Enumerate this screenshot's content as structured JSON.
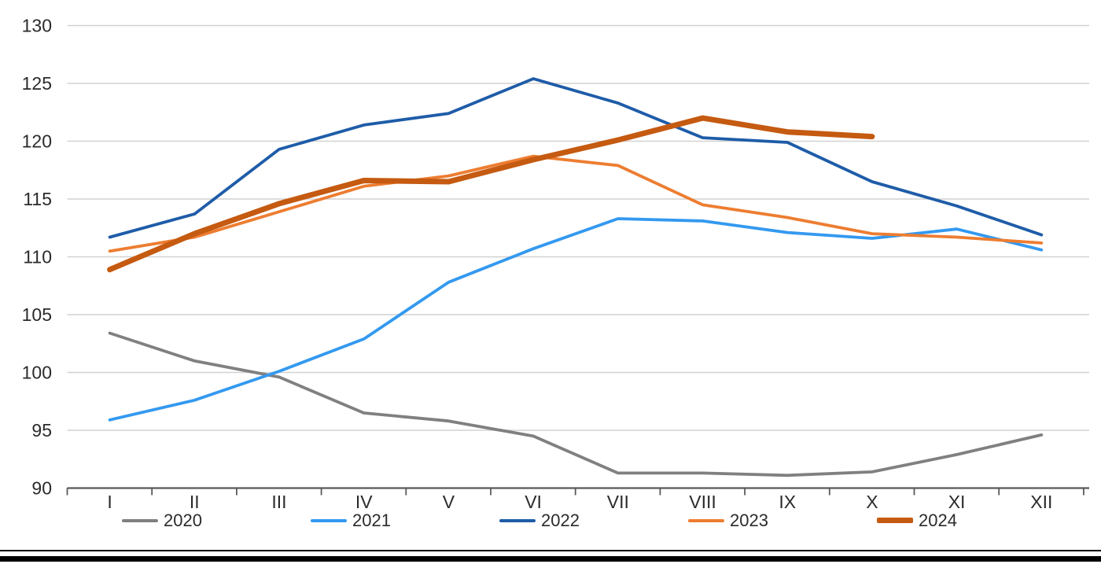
{
  "chart_data": {
    "type": "line",
    "title": "",
    "xlabel": "",
    "ylabel": "",
    "categories": [
      "I",
      "II",
      "III",
      "IV",
      "V",
      "VI",
      "VII",
      "VIII",
      "IX",
      "X",
      "XI",
      "XII"
    ],
    "y_ticks": [
      90,
      95,
      100,
      105,
      110,
      115,
      120,
      125,
      130
    ],
    "ylim": [
      90,
      130
    ],
    "grid": true,
    "legend_position": "bottom",
    "series": [
      {
        "name": "2020",
        "color": "#808080",
        "thick": false,
        "values": [
          103.4,
          101.0,
          99.6,
          96.5,
          95.8,
          94.5,
          91.3,
          91.3,
          91.1,
          91.4,
          92.9,
          94.6
        ]
      },
      {
        "name": "2021",
        "color": "#3399F0",
        "thick": false,
        "values": [
          95.9,
          97.6,
          100.1,
          102.9,
          107.8,
          110.7,
          113.3,
          113.1,
          112.1,
          111.6,
          112.4,
          110.6
        ]
      },
      {
        "name": "2022",
        "color": "#1E5CA8",
        "thick": false,
        "values": [
          111.7,
          113.7,
          119.3,
          121.4,
          122.4,
          125.4,
          123.3,
          120.3,
          119.9,
          116.5,
          114.4,
          111.9
        ]
      },
      {
        "name": "2023",
        "color": "#ED7D31",
        "thick": false,
        "values": [
          110.5,
          111.7,
          113.9,
          116.1,
          117.0,
          118.7,
          117.9,
          114.5,
          113.4,
          112.0,
          111.7,
          111.2
        ]
      },
      {
        "name": "2024",
        "color": "#C55A11",
        "thick": true,
        "values": [
          108.9,
          112.0,
          114.6,
          116.6,
          116.5,
          118.4,
          120.1,
          122.0,
          120.8,
          120.4,
          null,
          null
        ]
      }
    ],
    "axis_style": {
      "grid_color": "#d2d2d2",
      "axis_color": "#595959",
      "tick_color": "#595959",
      "label_color": "#2b2b2b"
    }
  }
}
